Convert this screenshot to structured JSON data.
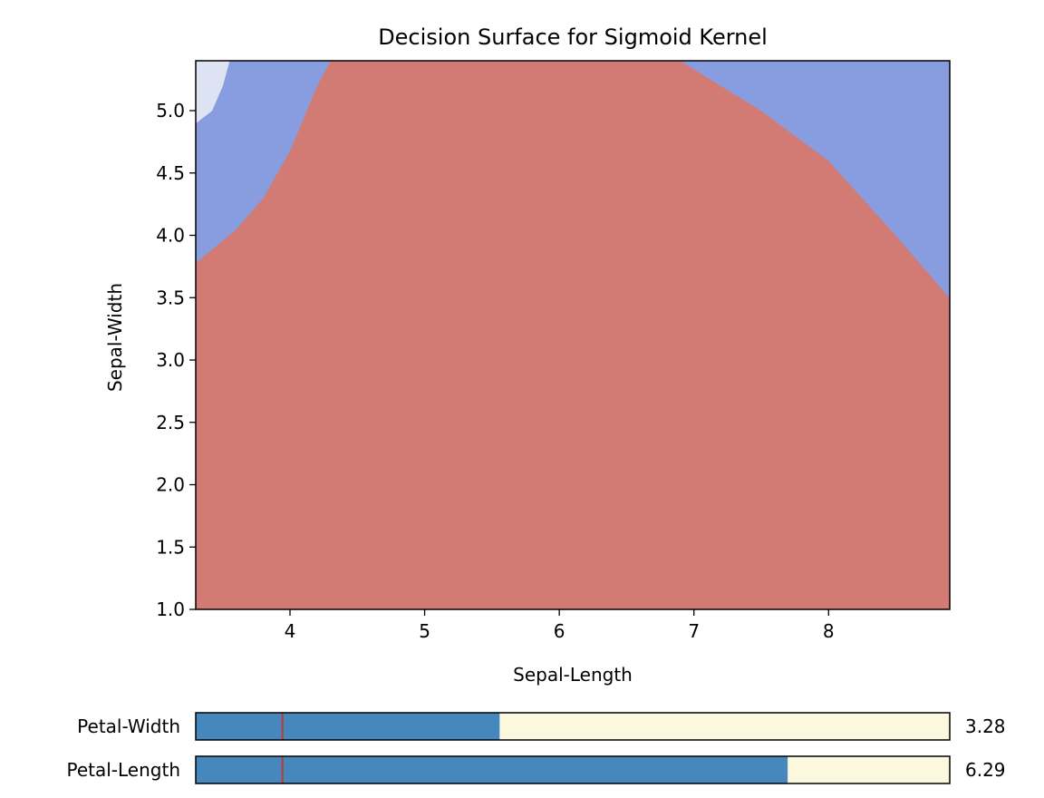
{
  "chart_data": {
    "type": "heatmap",
    "title": "Decision Surface for Sigmoid Kernel",
    "xlabel": "Sepal-Length",
    "ylabel": "Sepal-Width",
    "xlim": [
      3.3,
      8.9
    ],
    "ylim": [
      1.0,
      5.4
    ],
    "xticks": [
      "4",
      "5",
      "6",
      "7",
      "8"
    ],
    "xtick_values": [
      4,
      5,
      6,
      7,
      8
    ],
    "yticks": [
      "1.0",
      "1.5",
      "2.0",
      "2.5",
      "3.0",
      "3.5",
      "4.0",
      "4.5",
      "5.0"
    ],
    "ytick_values": [
      1.0,
      1.5,
      2.0,
      2.5,
      3.0,
      3.5,
      4.0,
      4.5,
      5.0
    ],
    "grid": false,
    "colors": {
      "region_red": "#d17b74",
      "region_blue": "#889de0",
      "region_light": "#dde3f3",
      "slider_fill": "#4687bd",
      "slider_track": "#fbf8de",
      "slider_marker": "#c0392b"
    },
    "regions": [
      {
        "class": "red",
        "boundary": [
          [
            3.3,
            1.0
          ],
          [
            3.3,
            3.78
          ],
          [
            3.6,
            4.05
          ],
          [
            3.8,
            4.3
          ],
          [
            4.0,
            4.68
          ],
          [
            4.2,
            5.2
          ],
          [
            4.3,
            5.4
          ],
          [
            6.9,
            5.4
          ],
          [
            7.5,
            5.0
          ],
          [
            8.0,
            4.6
          ],
          [
            8.5,
            4.0
          ],
          [
            8.9,
            3.5
          ],
          [
            8.9,
            1.0
          ]
        ]
      },
      {
        "class": "blue",
        "boundary": [
          [
            3.3,
            3.78
          ],
          [
            3.6,
            4.05
          ],
          [
            3.8,
            4.3
          ],
          [
            4.0,
            4.68
          ],
          [
            4.2,
            5.2
          ],
          [
            4.3,
            5.4
          ],
          [
            3.55,
            5.4
          ],
          [
            3.5,
            5.2
          ],
          [
            3.42,
            5.0
          ],
          [
            3.3,
            4.9
          ]
        ]
      },
      {
        "class": "light",
        "boundary": [
          [
            3.3,
            4.9
          ],
          [
            3.42,
            5.0
          ],
          [
            3.5,
            5.2
          ],
          [
            3.55,
            5.4
          ],
          [
            3.3,
            5.4
          ]
        ]
      },
      {
        "class": "blue",
        "boundary": [
          [
            6.9,
            5.4
          ],
          [
            7.5,
            5.0
          ],
          [
            8.0,
            4.6
          ],
          [
            8.5,
            4.0
          ],
          [
            8.9,
            3.5
          ],
          [
            8.9,
            5.4
          ]
        ]
      }
    ],
    "sliders": [
      {
        "label": "Petal-Width",
        "value": "3.28",
        "fill_fraction": 0.403,
        "marker_fraction": 0.115
      },
      {
        "label": "Petal-Length",
        "value": "6.29",
        "fill_fraction": 0.785,
        "marker_fraction": 0.115
      }
    ]
  }
}
